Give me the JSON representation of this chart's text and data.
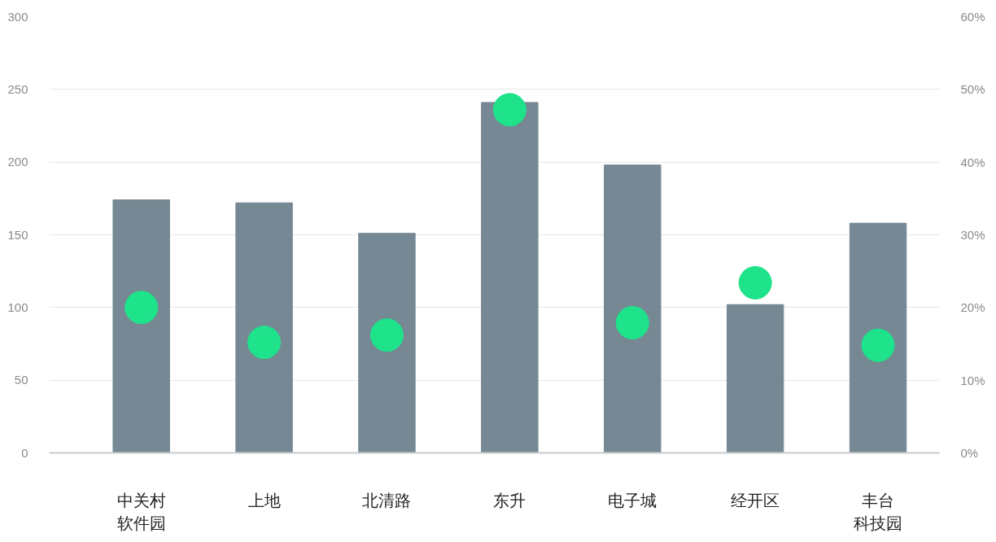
{
  "chart_data": {
    "type": "bar",
    "categories": [
      "中关村软件园",
      "上地",
      "北清路",
      "东升",
      "电子城",
      "经开区",
      "丰台科技园"
    ],
    "series": [
      {
        "color": "#758893",
        "values": [
          174,
          172,
          151,
          241,
          198,
          102,
          158
        ]
      },
      {
        "type": "scatter",
        "axis": "y2",
        "color": "#1ee38b",
        "marker": "circle",
        "values": [
          20,
          15.2,
          16.2,
          47.2,
          17.9,
          23.4,
          14.8
        ]
      }
    ],
    "ylim": [
      0,
      300
    ],
    "yticks": [
      0,
      50,
      100,
      150,
      200,
      250,
      300
    ],
    "y2lim": [
      0,
      60
    ],
    "y2ticks": [
      {
        "value": 0,
        "label": "0%"
      },
      {
        "value": 10,
        "label": "10%"
      },
      {
        "value": 20,
        "label": "20%"
      },
      {
        "value": 30,
        "label": "30%"
      },
      {
        "value": 40,
        "label": "40%"
      },
      {
        "value": 50,
        "label": "50%"
      },
      {
        "value": 60,
        "label": "60%"
      }
    ],
    "grid": "y"
  }
}
